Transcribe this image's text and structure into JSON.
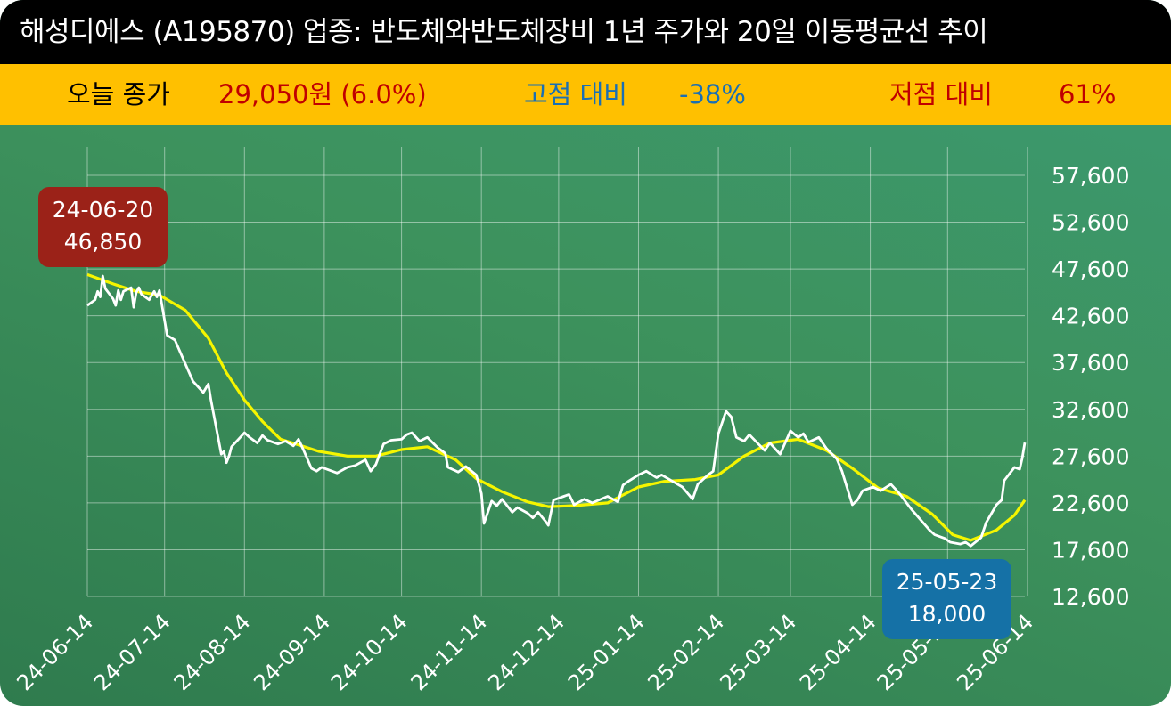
{
  "title": "해성디에스 (A195870) 업종: 반도체와반도체장비 1년 주가와 20일 이동평균선 추이",
  "stats": {
    "today_label": "오늘 종가",
    "today_value": "29,050원 (6.0%)",
    "high_label": "고점 대비",
    "high_value": "-38%",
    "low_label": "저점 대비",
    "low_value": "61%"
  },
  "colors": {
    "title_bg": "#000000",
    "stats_bg": "#ffc000",
    "price_line": "#ffffff",
    "ma_line": "#f5f500",
    "high_callout": "#9b2218",
    "low_callout": "#1571a6",
    "today_color": "#c00000",
    "high_color": "#1a6fb4",
    "low_color": "#c00000"
  },
  "callouts": {
    "high": {
      "date": "24-06-20",
      "value": "46,850"
    },
    "low": {
      "date": "25-05-23",
      "value": "18,000"
    }
  },
  "chart_data": {
    "type": "line",
    "title": "",
    "xlabel": "",
    "ylabel": "",
    "ylim": [
      12600,
      57600
    ],
    "grid": true,
    "yaxis_position": "right",
    "x_tick_labels": [
      "24-06-14",
      "24-07-14",
      "24-08-14",
      "24-09-14",
      "24-10-14",
      "24-11-14",
      "24-12-14",
      "25-01-14",
      "25-02-14",
      "25-03-14",
      "25-04-14",
      "25-05-14",
      "25-06-14"
    ],
    "y_tick_labels": [
      "57,600",
      "52,600",
      "47,600",
      "42,600",
      "37,600",
      "32,600",
      "27,600",
      "22,600",
      "17,600",
      "12,600"
    ],
    "series": [
      {
        "role": "price",
        "points": [
          [
            "24-06-14",
            43700
          ],
          [
            "24-06-17",
            44300
          ],
          [
            "24-06-18",
            45200
          ],
          [
            "24-06-19",
            44600
          ],
          [
            "24-06-20",
            46850
          ],
          [
            "24-06-21",
            45500
          ],
          [
            "24-06-24",
            44400
          ],
          [
            "24-06-25",
            43700
          ],
          [
            "24-06-26",
            45300
          ],
          [
            "24-06-27",
            44300
          ],
          [
            "24-06-28",
            45200
          ],
          [
            "24-07-01",
            45600
          ],
          [
            "24-07-02",
            43500
          ],
          [
            "24-07-03",
            45100
          ],
          [
            "24-07-04",
            45600
          ],
          [
            "24-07-05",
            44900
          ],
          [
            "24-07-08",
            44300
          ],
          [
            "24-07-09",
            44800
          ],
          [
            "24-07-10",
            45200
          ],
          [
            "24-07-11",
            44600
          ],
          [
            "24-07-12",
            45300
          ],
          [
            "24-07-15",
            40500
          ],
          [
            "24-07-18",
            40000
          ],
          [
            "24-07-22",
            37500
          ],
          [
            "24-07-25",
            35600
          ],
          [
            "24-07-29",
            34400
          ],
          [
            "24-07-31",
            35300
          ],
          [
            "24-08-01",
            33600
          ],
          [
            "24-08-05",
            27800
          ],
          [
            "24-08-06",
            28100
          ],
          [
            "24-08-07",
            26900
          ],
          [
            "24-08-08",
            27600
          ],
          [
            "24-08-09",
            28600
          ],
          [
            "24-08-12",
            29500
          ],
          [
            "24-08-14",
            30100
          ],
          [
            "24-08-16",
            29600
          ],
          [
            "24-08-19",
            29000
          ],
          [
            "24-08-21",
            29800
          ],
          [
            "24-08-23",
            29300
          ],
          [
            "24-08-27",
            28900
          ],
          [
            "24-08-30",
            29200
          ],
          [
            "24-09-02",
            28700
          ],
          [
            "24-09-04",
            29400
          ],
          [
            "24-09-06",
            28200
          ],
          [
            "24-09-09",
            26300
          ],
          [
            "24-09-11",
            26000
          ],
          [
            "24-09-13",
            26400
          ],
          [
            "24-09-19",
            25800
          ],
          [
            "24-09-23",
            26400
          ],
          [
            "24-09-26",
            26600
          ],
          [
            "24-09-30",
            27200
          ],
          [
            "24-10-02",
            26000
          ],
          [
            "24-10-04",
            26700
          ],
          [
            "24-10-07",
            28900
          ],
          [
            "24-10-10",
            29300
          ],
          [
            "24-10-14",
            29400
          ],
          [
            "24-10-16",
            29900
          ],
          [
            "24-10-18",
            30100
          ],
          [
            "24-10-21",
            29200
          ],
          [
            "24-10-24",
            29600
          ],
          [
            "24-10-28",
            28500
          ],
          [
            "24-10-31",
            27900
          ],
          [
            "24-11-01",
            26400
          ],
          [
            "24-11-05",
            25900
          ],
          [
            "24-11-08",
            26500
          ],
          [
            "24-11-12",
            25600
          ],
          [
            "24-11-14",
            23600
          ],
          [
            "24-11-15",
            20400
          ],
          [
            "24-11-18",
            22800
          ],
          [
            "24-11-20",
            22300
          ],
          [
            "24-11-22",
            23000
          ],
          [
            "24-11-26",
            21600
          ],
          [
            "24-11-28",
            22100
          ],
          [
            "24-12-02",
            21500
          ],
          [
            "24-12-04",
            21000
          ],
          [
            "24-12-06",
            21600
          ],
          [
            "24-12-09",
            20600
          ],
          [
            "24-12-10",
            20200
          ],
          [
            "24-12-12",
            22900
          ],
          [
            "24-12-16",
            23300
          ],
          [
            "24-12-18",
            23500
          ],
          [
            "24-12-20",
            22400
          ],
          [
            "24-12-24",
            23000
          ],
          [
            "24-12-27",
            22600
          ],
          [
            "25-01-02",
            23300
          ],
          [
            "25-01-06",
            22700
          ],
          [
            "25-01-08",
            24500
          ],
          [
            "25-01-10",
            24900
          ],
          [
            "25-01-14",
            25600
          ],
          [
            "25-01-17",
            26000
          ],
          [
            "25-01-21",
            25300
          ],
          [
            "25-01-23",
            25600
          ],
          [
            "25-01-31",
            24300
          ],
          [
            "25-02-04",
            23000
          ],
          [
            "25-02-06",
            24600
          ],
          [
            "25-02-10",
            25600
          ],
          [
            "25-02-12",
            26000
          ],
          [
            "25-02-14",
            30000
          ],
          [
            "25-02-17",
            32400
          ],
          [
            "25-02-19",
            31800
          ],
          [
            "25-02-21",
            29600
          ],
          [
            "25-02-24",
            29200
          ],
          [
            "25-02-26",
            29900
          ],
          [
            "25-03-04",
            28200
          ],
          [
            "25-03-06",
            29000
          ],
          [
            "25-03-10",
            27800
          ],
          [
            "25-03-14",
            30300
          ],
          [
            "25-03-17",
            29600
          ],
          [
            "25-03-19",
            30000
          ],
          [
            "25-03-21",
            29100
          ],
          [
            "25-03-25",
            29600
          ],
          [
            "25-03-28",
            28400
          ],
          [
            "25-04-01",
            27300
          ],
          [
            "25-04-03",
            26000
          ],
          [
            "25-04-07",
            22400
          ],
          [
            "25-04-09",
            22900
          ],
          [
            "25-04-11",
            23900
          ],
          [
            "25-04-15",
            24300
          ],
          [
            "25-04-18",
            23900
          ],
          [
            "25-04-22",
            24600
          ],
          [
            "25-04-25",
            23700
          ],
          [
            "25-04-30",
            21900
          ],
          [
            "25-05-07",
            19700
          ],
          [
            "25-05-09",
            19200
          ],
          [
            "25-05-13",
            18800
          ],
          [
            "25-05-15",
            18400
          ],
          [
            "25-05-19",
            18200
          ],
          [
            "25-05-21",
            18400
          ],
          [
            "25-05-23",
            18000
          ],
          [
            "25-05-27",
            18900
          ],
          [
            "25-05-29",
            20500
          ],
          [
            "25-06-02",
            22400
          ],
          [
            "25-06-04",
            22900
          ],
          [
            "25-06-05",
            25000
          ],
          [
            "25-06-09",
            26400
          ],
          [
            "25-06-11",
            26200
          ],
          [
            "25-06-12",
            27400
          ],
          [
            "25-06-13",
            29050
          ]
        ]
      },
      {
        "role": "ma20",
        "points": [
          [
            "24-06-14",
            47000
          ],
          [
            "24-06-24",
            46000
          ],
          [
            "24-07-03",
            45200
          ],
          [
            "24-07-12",
            44800
          ],
          [
            "24-07-22",
            43200
          ],
          [
            "24-07-31",
            40200
          ],
          [
            "24-08-07",
            36500
          ],
          [
            "24-08-14",
            33600
          ],
          [
            "24-08-21",
            31300
          ],
          [
            "24-08-28",
            29400
          ],
          [
            "24-09-04",
            28800
          ],
          [
            "24-09-12",
            28100
          ],
          [
            "24-09-23",
            27600
          ],
          [
            "24-10-04",
            27600
          ],
          [
            "24-10-14",
            28300
          ],
          [
            "24-10-24",
            28600
          ],
          [
            "24-11-04",
            27200
          ],
          [
            "24-11-12",
            25200
          ],
          [
            "24-11-22",
            23800
          ],
          [
            "24-12-02",
            22700
          ],
          [
            "24-12-10",
            22200
          ],
          [
            "24-12-20",
            22300
          ],
          [
            "25-01-02",
            22600
          ],
          [
            "25-01-14",
            24300
          ],
          [
            "25-01-24",
            24900
          ],
          [
            "25-02-05",
            25100
          ],
          [
            "25-02-14",
            25600
          ],
          [
            "25-02-24",
            27600
          ],
          [
            "25-03-06",
            29000
          ],
          [
            "25-03-17",
            29400
          ],
          [
            "25-03-28",
            28200
          ],
          [
            "25-04-07",
            26300
          ],
          [
            "25-04-17",
            24200
          ],
          [
            "25-04-28",
            23300
          ],
          [
            "25-05-08",
            21400
          ],
          [
            "25-05-16",
            19200
          ],
          [
            "25-05-23",
            18600
          ],
          [
            "25-06-02",
            19700
          ],
          [
            "25-06-09",
            21300
          ],
          [
            "25-06-13",
            22900
          ]
        ]
      }
    ]
  }
}
